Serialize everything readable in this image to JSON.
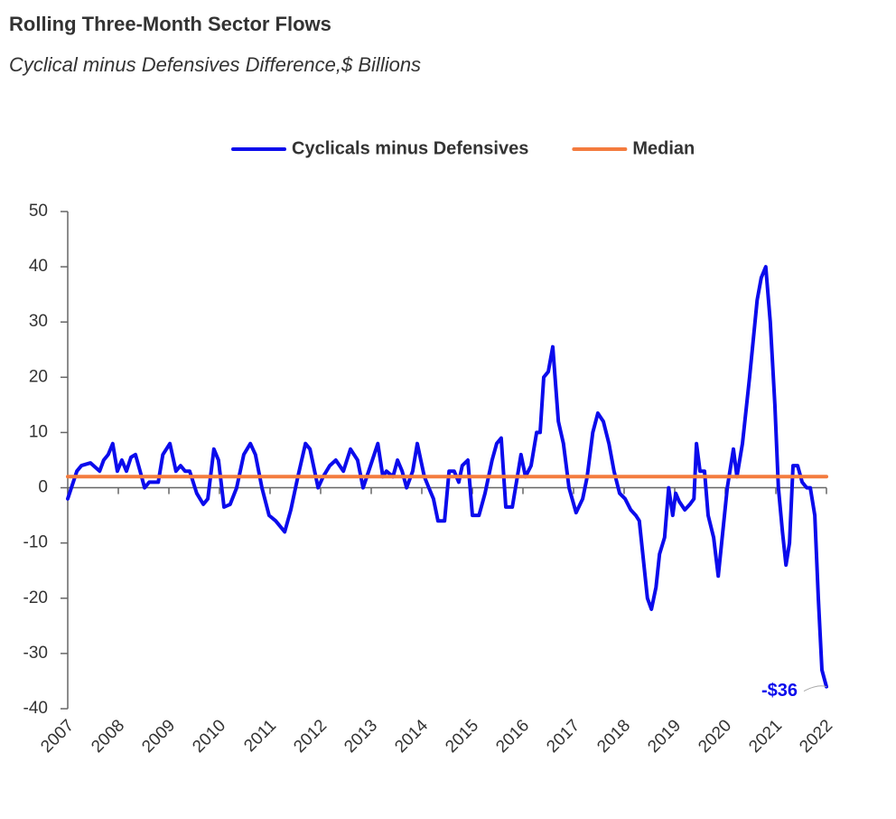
{
  "chart_data": {
    "type": "line",
    "title": "Rolling Three-Month Sector Flows",
    "subtitle": "Cyclical minus Defensives Difference,$ Billions",
    "xlim": [
      2007,
      2022
    ],
    "xticks": [
      2007,
      2008,
      2009,
      2010,
      2011,
      2012,
      2013,
      2014,
      2015,
      2016,
      2017,
      2018,
      2019,
      2020,
      2021,
      2022
    ],
    "ylim": [
      -40,
      50
    ],
    "yticks": [
      -40,
      -30,
      -20,
      -10,
      0,
      10,
      20,
      30,
      40,
      50
    ],
    "legend": "top",
    "series": [
      {
        "name": "Cyclicals minus Defensives",
        "color": "#0b0bec",
        "x": [
          2007.0,
          2007.18,
          2007.27,
          2007.45,
          2007.63,
          2007.71,
          2007.8,
          2007.89,
          2007.98,
          2008.07,
          2008.16,
          2008.25,
          2008.34,
          2008.43,
          2008.52,
          2008.61,
          2008.79,
          2008.88,
          2009.02,
          2009.14,
          2009.23,
          2009.32,
          2009.41,
          2009.55,
          2009.68,
          2009.77,
          2009.89,
          2009.98,
          2010.09,
          2010.21,
          2010.34,
          2010.48,
          2010.61,
          2010.71,
          2010.84,
          2010.98,
          2011.11,
          2011.29,
          2011.41,
          2011.55,
          2011.7,
          2011.79,
          2011.95,
          2012.05,
          2012.18,
          2012.3,
          2012.45,
          2012.59,
          2012.73,
          2012.84,
          2012.95,
          2013.13,
          2013.23,
          2013.3,
          2013.43,
          2013.52,
          2013.61,
          2013.7,
          2013.82,
          2013.91,
          2014.05,
          2014.14,
          2014.23,
          2014.32,
          2014.45,
          2014.54,
          2014.64,
          2014.73,
          2014.8,
          2014.91,
          2015.0,
          2015.13,
          2015.25,
          2015.39,
          2015.48,
          2015.57,
          2015.66,
          2015.79,
          2015.89,
          2015.96,
          2016.05,
          2016.16,
          2016.27,
          2016.34,
          2016.41,
          2016.5,
          2016.59,
          2016.7,
          2016.8,
          2016.91,
          2017.05,
          2017.18,
          2017.27,
          2017.38,
          2017.48,
          2017.59,
          2017.7,
          2017.8,
          2017.91,
          2018.02,
          2018.13,
          2018.23,
          2018.3,
          2018.38,
          2018.46,
          2018.54,
          2018.63,
          2018.7,
          2018.8,
          2018.88,
          2018.96,
          2019.02,
          2019.09,
          2019.2,
          2019.3,
          2019.38,
          2019.43,
          2019.5,
          2019.59,
          2019.66,
          2019.77,
          2019.86,
          2019.95,
          2020.04,
          2020.16,
          2020.23,
          2020.34,
          2020.48,
          2020.63,
          2020.71,
          2020.8,
          2020.89,
          2020.98,
          2021.05,
          2021.13,
          2021.2,
          2021.27,
          2021.34,
          2021.43,
          2021.52,
          2021.61,
          2021.68,
          2021.77,
          2021.84,
          2021.91,
          2022.0
        ],
        "values": [
          -2,
          3,
          4,
          4.5,
          3,
          5,
          6,
          8,
          3,
          5,
          3,
          5.5,
          6,
          3,
          0,
          1,
          1,
          6,
          8,
          3,
          4,
          3,
          3,
          -1,
          -3,
          -2,
          7,
          5,
          -3.5,
          -3,
          0,
          6,
          8,
          6,
          0,
          -5,
          -6,
          -8,
          -4,
          2,
          8,
          7,
          0,
          2,
          4,
          5,
          3,
          7,
          5,
          0,
          3,
          8,
          2,
          3,
          2,
          5,
          3,
          0,
          3,
          8,
          2,
          0,
          -2,
          -6,
          -6,
          3,
          3,
          1,
          4,
          5,
          -5,
          -5,
          -1,
          5,
          8,
          9,
          -3.5,
          -3.5,
          2,
          6,
          2,
          4,
          10,
          10,
          20,
          21,
          25.5,
          12,
          8,
          0,
          -4.5,
          -2,
          2,
          10,
          13.5,
          12,
          8,
          3,
          -1,
          -2,
          -4,
          -5,
          -6,
          -13,
          -20,
          -22,
          -18,
          -12,
          -9,
          0,
          -5,
          -1,
          -2.5,
          -4,
          -3,
          -2,
          8,
          3,
          3,
          -5,
          -9,
          -16,
          -8,
          0,
          7,
          2,
          8,
          20,
          34,
          38,
          40,
          30,
          15,
          0,
          -8,
          -14,
          -10,
          4,
          4,
          1,
          0,
          0,
          -5,
          -20,
          -33,
          -36
        ]
      },
      {
        "name": "Median",
        "color": "#f47b3e",
        "x": [
          2007,
          2022
        ],
        "values": [
          2,
          2
        ]
      }
    ],
    "annotations": [
      {
        "text": "-$36",
        "x": 2022,
        "y": -36
      }
    ]
  }
}
